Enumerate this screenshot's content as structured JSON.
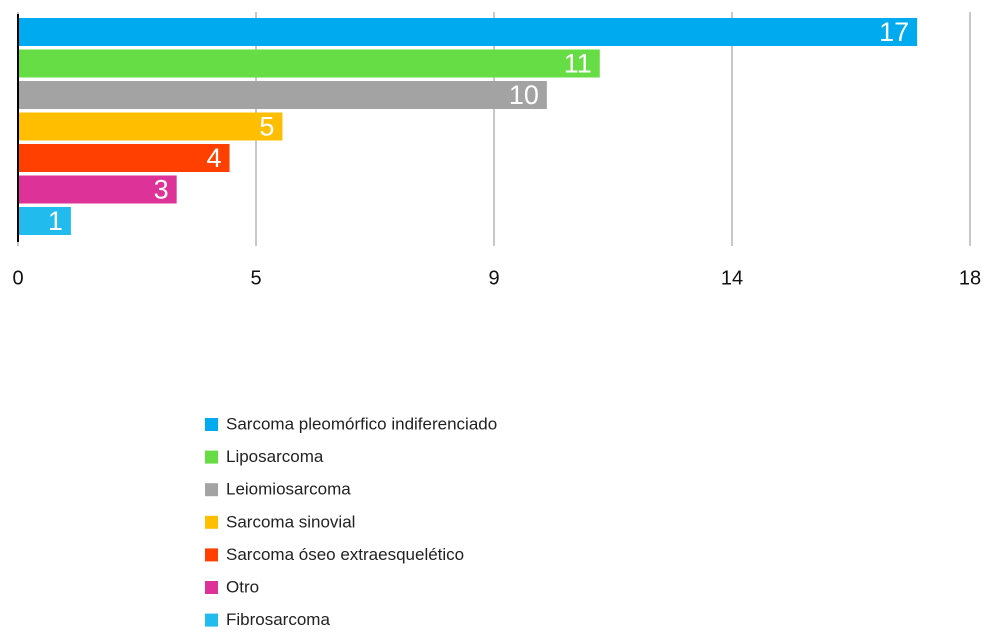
{
  "chart_data": {
    "type": "bar",
    "orientation": "horizontal",
    "categories": [
      "Sarcoma pleomórfico indiferenciado",
      "Liposarcoma",
      "Leiomiosarcoma",
      "Sarcoma sinovial",
      "Sarcoma óseo extraesquelético",
      "Otro",
      "Fibrosarcoma"
    ],
    "values": [
      17,
      11,
      10,
      5,
      4,
      3,
      1
    ],
    "colors": [
      "#00aaee",
      "#66dd44",
      "#a3a3a3",
      "#ffbf00",
      "#ff4000",
      "#dd3399",
      "#22bbee"
    ],
    "xlim": [
      0,
      18
    ],
    "xticks": [
      0,
      {
        "value": 4.5,
        "label": "5"
      },
      9,
      {
        "value": 13.5,
        "label": "14"
      },
      18
    ],
    "grid": true,
    "legend": "bottom"
  }
}
